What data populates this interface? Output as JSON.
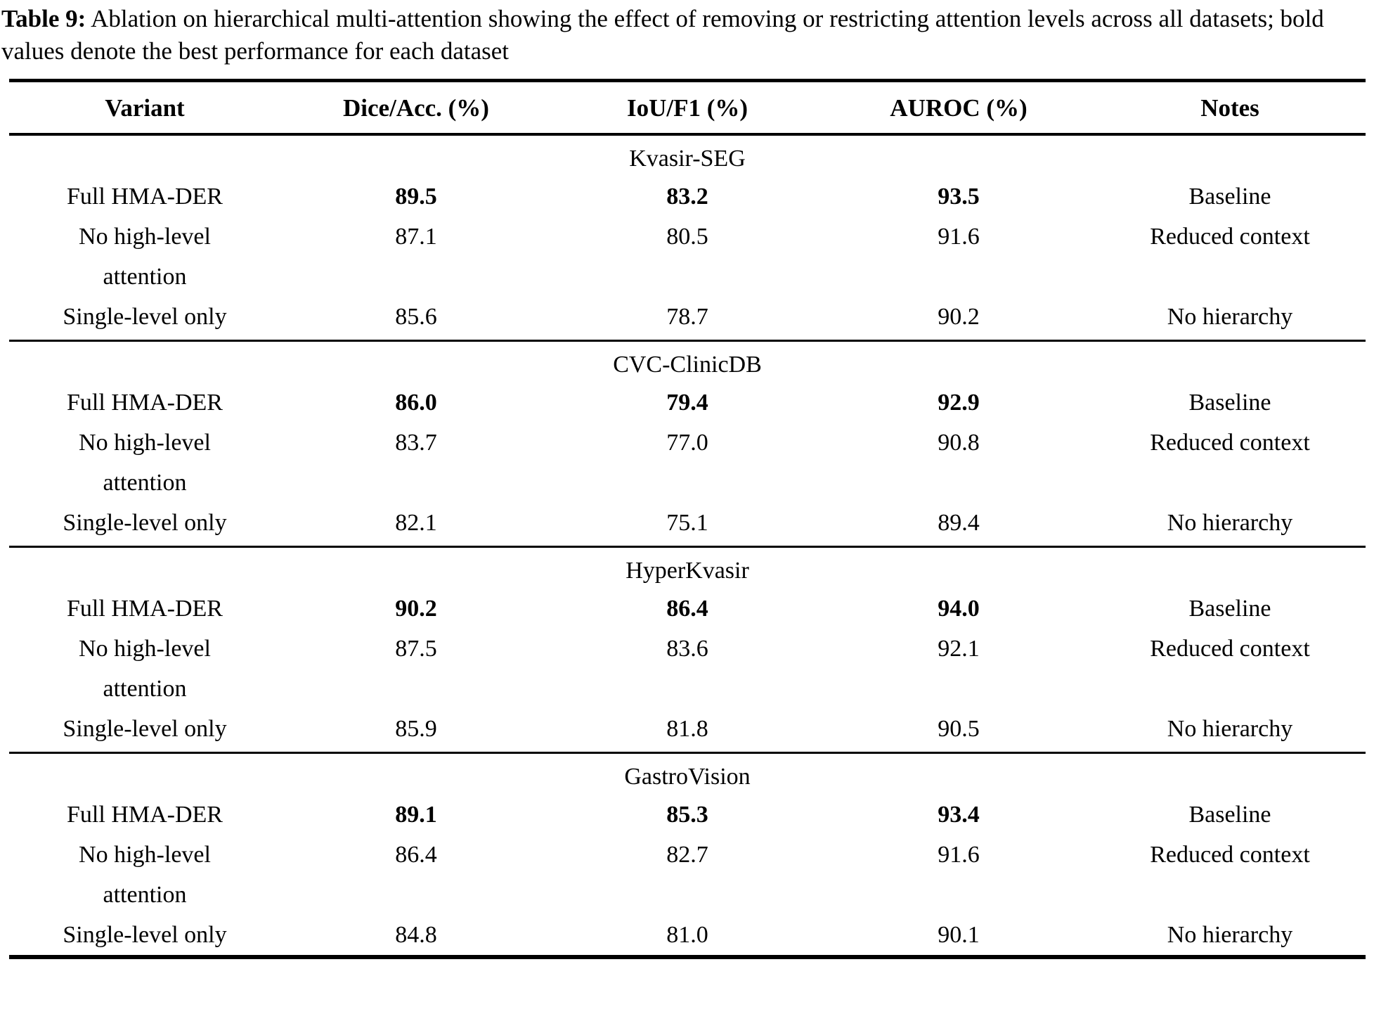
{
  "caption": {
    "label": "Table 9:",
    "text": "Ablation on hierarchical multi-attention showing the effect of removing or restricting attention levels across all datasets; bold values denote the best performance for each dataset"
  },
  "table": {
    "columns": {
      "variant": "Variant",
      "dice_acc": "Dice/Acc. (%)",
      "iou_f1": "IoU/F1 (%)",
      "auroc": "AUROC (%)",
      "notes": "Notes"
    },
    "sections": [
      {
        "title": "Kvasir-SEG",
        "rows": [
          {
            "variant": "Full HMA-DER",
            "dice_acc": "89.5",
            "iou_f1": "83.2",
            "auroc": "93.5",
            "notes": "Baseline"
          },
          {
            "variant": "No high-level attention",
            "dice_acc": "87.1",
            "iou_f1": "80.5",
            "auroc": "91.6",
            "notes": "Reduced context"
          },
          {
            "variant": "Single-level only",
            "dice_acc": "85.6",
            "iou_f1": "78.7",
            "auroc": "90.2",
            "notes": "No hierarchy"
          }
        ]
      },
      {
        "title": "CVC-ClinicDB",
        "rows": [
          {
            "variant": "Full HMA-DER",
            "dice_acc": "86.0",
            "iou_f1": "79.4",
            "auroc": "92.9",
            "notes": "Baseline"
          },
          {
            "variant": "No high-level attention",
            "dice_acc": "83.7",
            "iou_f1": "77.0",
            "auroc": "90.8",
            "notes": "Reduced context"
          },
          {
            "variant": "Single-level only",
            "dice_acc": "82.1",
            "iou_f1": "75.1",
            "auroc": "89.4",
            "notes": "No hierarchy"
          }
        ]
      },
      {
        "title": "HyperKvasir",
        "rows": [
          {
            "variant": "Full HMA-DER",
            "dice_acc": "90.2",
            "iou_f1": "86.4",
            "auroc": "94.0",
            "notes": "Baseline"
          },
          {
            "variant": "No high-level attention",
            "dice_acc": "87.5",
            "iou_f1": "83.6",
            "auroc": "92.1",
            "notes": "Reduced context"
          },
          {
            "variant": "Single-level only",
            "dice_acc": "85.9",
            "iou_f1": "81.8",
            "auroc": "90.5",
            "notes": "No hierarchy"
          }
        ]
      },
      {
        "title": "GastroVision",
        "rows": [
          {
            "variant": "Full HMA-DER",
            "dice_acc": "89.1",
            "iou_f1": "85.3",
            "auroc": "93.4",
            "notes": "Baseline"
          },
          {
            "variant": "No high-level attention",
            "dice_acc": "86.4",
            "iou_f1": "82.7",
            "auroc": "91.6",
            "notes": "Reduced context"
          },
          {
            "variant": "Single-level only",
            "dice_acc": "84.8",
            "iou_f1": "81.0",
            "auroc": "90.1",
            "notes": "No hierarchy"
          }
        ]
      }
    ]
  }
}
